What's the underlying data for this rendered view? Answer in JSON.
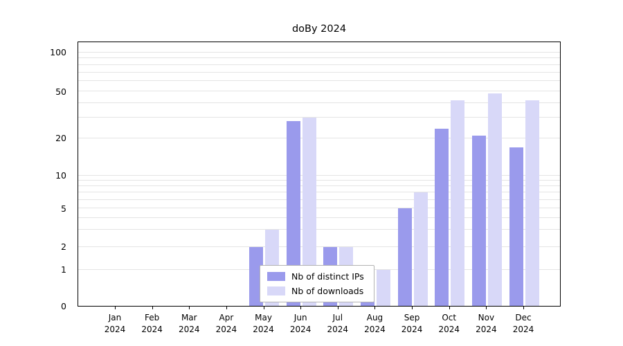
{
  "chart_data": {
    "type": "bar",
    "title": "doBy 2024",
    "categories": [
      "Jan",
      "Feb",
      "Mar",
      "Apr",
      "May",
      "Jun",
      "Jul",
      "Aug",
      "Sep",
      "Oct",
      "Nov",
      "Dec"
    ],
    "year": "2024",
    "series": [
      {
        "name": "Nb of distinct IPs",
        "color": "#9a9aec",
        "values": [
          0,
          0,
          0,
          0,
          2,
          28,
          2,
          1,
          5,
          24,
          21,
          17
        ]
      },
      {
        "name": "Nb of downloads",
        "color": "#d8d8f8",
        "values": [
          0,
          0,
          0,
          0,
          3,
          30,
          2,
          1,
          7,
          42,
          48,
          42
        ]
      }
    ],
    "yticks": [
      0,
      1,
      2,
      5,
      10,
      20,
      50,
      100
    ],
    "ytick_labels": [
      "0",
      "1",
      "2",
      "5",
      "10",
      "20",
      "50",
      "100"
    ],
    "ylim": [
      0,
      110
    ],
    "yscale": "log-like",
    "grid": "horizontal-minor",
    "legend_position": "inside-bottom-center"
  }
}
